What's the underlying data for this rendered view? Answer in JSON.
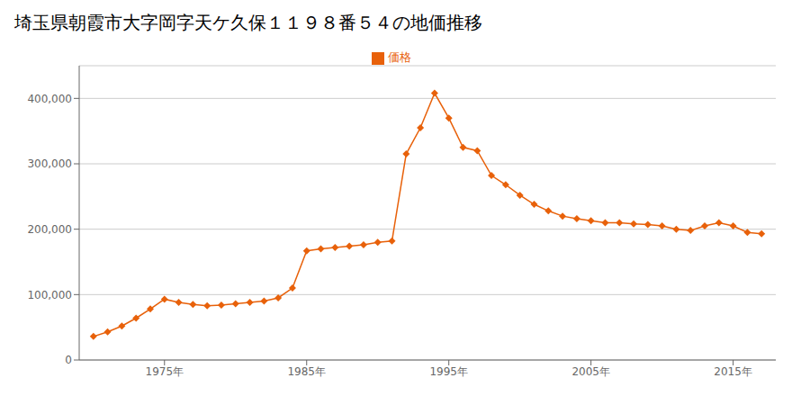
{
  "chart_data": {
    "type": "line",
    "title": "埼玉県朝霞市大字岡字天ケ久保１１９８番５４の地価推移",
    "x": [
      1970,
      1971,
      1972,
      1973,
      1974,
      1975,
      1976,
      1977,
      1978,
      1979,
      1980,
      1981,
      1982,
      1983,
      1984,
      1985,
      1986,
      1987,
      1988,
      1989,
      1990,
      1991,
      1992,
      1993,
      1994,
      1995,
      1996,
      1997,
      1998,
      1999,
      2000,
      2001,
      2002,
      2003,
      2004,
      2005,
      2006,
      2007,
      2008,
      2009,
      2010,
      2011,
      2012,
      2013,
      2014,
      2015,
      2016,
      2017
    ],
    "series": [
      {
        "name": "価格",
        "color": "#e8610a",
        "marker": "diamond",
        "values": [
          36000,
          43000,
          52000,
          64000,
          78000,
          93000,
          88000,
          85000,
          83000,
          84000,
          86000,
          88000,
          90000,
          95000,
          110000,
          167000,
          170000,
          172000,
          174000,
          176000,
          180000,
          182000,
          315000,
          355000,
          408000,
          370000,
          325000,
          320000,
          282000,
          268000,
          252000,
          238000,
          228000,
          220000,
          216000,
          213000,
          210000,
          210000,
          208000,
          207000,
          205000,
          200000,
          198000,
          205000,
          210000,
          205000,
          195000,
          193000
        ]
      }
    ],
    "xlim": [
      1969,
      2018
    ],
    "ylim": [
      0,
      450000
    ],
    "xticks": [
      {
        "value": 1975,
        "label": "1975年"
      },
      {
        "value": 1985,
        "label": "1985年"
      },
      {
        "value": 1995,
        "label": "1995年"
      },
      {
        "value": 2005,
        "label": "2005年"
      },
      {
        "value": 2015,
        "label": "2015年"
      }
    ],
    "yticks": [
      0,
      {
        "value": 100000,
        "label": "100,000"
      },
      {
        "value": 200000,
        "label": "200,000"
      },
      {
        "value": 300000,
        "label": "300,000"
      },
      {
        "value": 400000,
        "label": "400,000"
      }
    ],
    "grid": "y",
    "legend": "top"
  }
}
